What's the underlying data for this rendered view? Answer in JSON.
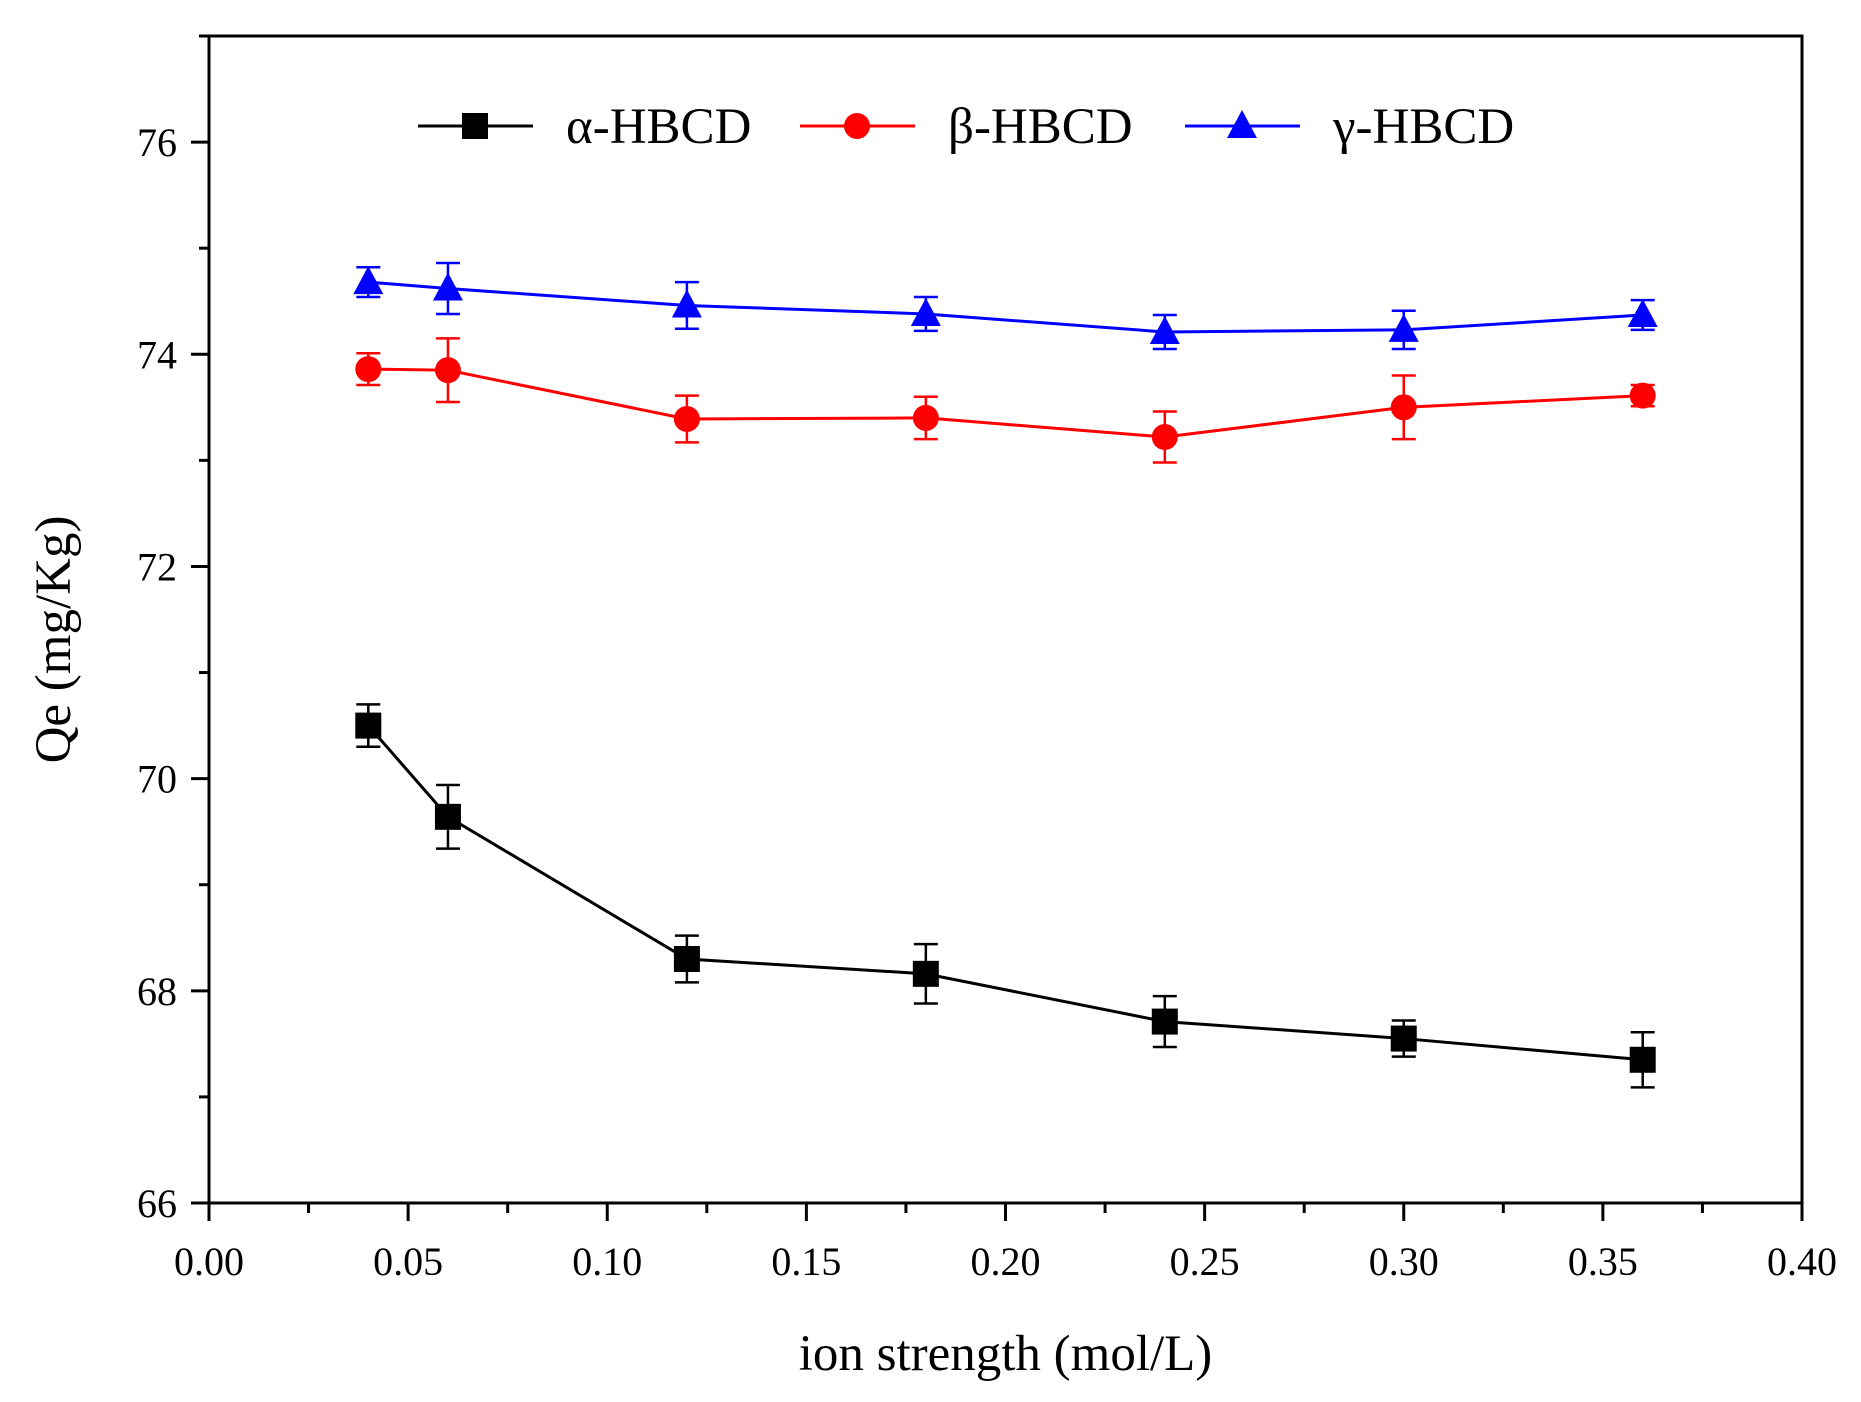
{
  "chart_data": {
    "type": "line",
    "title": "",
    "xlabel": "ion strength (mol/L)",
    "ylabel": "Qe (mg/Kg)",
    "xlim": [
      0.0,
      0.4
    ],
    "ylim": [
      66,
      77
    ],
    "x_ticks": [
      0.0,
      0.05,
      0.1,
      0.15,
      0.2,
      0.25,
      0.3,
      0.35,
      0.4
    ],
    "x_tick_labels": [
      "0.00",
      "0.05",
      "0.10",
      "0.15",
      "0.20",
      "0.25",
      "0.30",
      "0.35",
      "0.40"
    ],
    "y_ticks": [
      66,
      68,
      70,
      72,
      74,
      76
    ],
    "y_tick_labels": [
      "66",
      "68",
      "70",
      "72",
      "74",
      "76"
    ],
    "grid": false,
    "legend_position": "top",
    "x": [
      0.04,
      0.06,
      0.12,
      0.18,
      0.24,
      0.3,
      0.36
    ],
    "series": [
      {
        "name": "α-HBCD",
        "color": "#000000",
        "marker": "square",
        "values": [
          70.5,
          69.64,
          68.3,
          68.16,
          67.71,
          67.55,
          67.35
        ],
        "errors": [
          0.2,
          0.3,
          0.22,
          0.28,
          0.24,
          0.17,
          0.26
        ]
      },
      {
        "name": "β-HBCD",
        "color": "#ff0000",
        "marker": "circle",
        "values": [
          73.86,
          73.85,
          73.39,
          73.4,
          73.22,
          73.5,
          73.61
        ],
        "errors": [
          0.15,
          0.3,
          0.22,
          0.2,
          0.24,
          0.3,
          0.1
        ]
      },
      {
        "name": "γ-HBCD",
        "color": "#0000ff",
        "marker": "triangle",
        "values": [
          74.68,
          74.62,
          74.46,
          74.38,
          74.21,
          74.23,
          74.37
        ],
        "errors": [
          0.14,
          0.24,
          0.22,
          0.16,
          0.16,
          0.18,
          0.14
        ]
      }
    ]
  }
}
